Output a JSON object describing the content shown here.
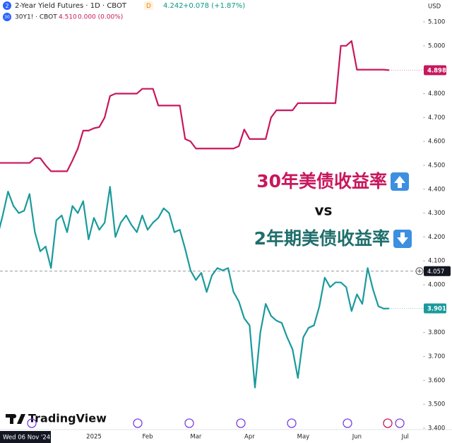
{
  "chart_data": {
    "type": "line",
    "currency": "USD",
    "header": [
      {
        "icon": "2",
        "name": "2-Year Yield Futures · 1D · CBOT",
        "badge": "D",
        "last": "4.242",
        "change": "+0.078 (+1.87%)"
      },
      {
        "icon": "30",
        "name": "30Y1! · CBOT",
        "last": "4.510",
        "change": "0.000 (0.00%)"
      }
    ],
    "annotations": [
      "30年美债收益率",
      "vs",
      "2年期美债收益率"
    ],
    "crosshair": {
      "value": 4.057,
      "date": "Wed 06 Nov '24"
    },
    "logo": "TradingView",
    "categories": [
      null,
      null,
      null,
      null,
      null,
      null,
      null,
      null,
      null,
      null,
      null,
      null,
      null,
      null,
      null,
      null,
      null,
      null,
      "2025",
      null,
      null,
      null,
      null,
      null,
      null,
      null,
      null,
      null,
      "Feb",
      null,
      null,
      null,
      null,
      null,
      null,
      null,
      null,
      "Mar",
      null,
      null,
      null,
      null,
      null,
      null,
      null,
      null,
      null,
      "Apr",
      null,
      null,
      null,
      null,
      null,
      null,
      null,
      null,
      null,
      "May",
      null,
      null,
      null,
      null,
      null,
      null,
      null,
      null,
      null,
      "Jun",
      null,
      null,
      null,
      null,
      null,
      null,
      null,
      null,
      "Jul"
    ],
    "series": [
      {
        "name": "30Y1! · CBOT",
        "color": "#c8175d",
        "values": [
          4.51,
          4.51,
          4.51,
          4.51,
          4.51,
          4.51,
          4.51,
          4.53,
          4.53,
          4.5,
          4.475,
          4.475,
          4.475,
          4.475,
          4.52,
          4.57,
          4.645,
          4.645,
          4.655,
          4.66,
          4.7,
          4.79,
          4.8,
          4.8,
          4.8,
          4.8,
          4.8,
          4.82,
          4.82,
          4.82,
          4.75,
          4.75,
          4.75,
          4.75,
          4.75,
          4.61,
          4.6,
          4.57,
          4.57,
          4.57,
          4.57,
          4.57,
          4.57,
          4.57,
          4.57,
          4.58,
          4.65,
          4.61,
          4.61,
          4.61,
          4.61,
          4.7,
          4.73,
          4.73,
          4.73,
          4.73,
          4.76,
          4.76,
          4.76,
          4.76,
          4.76,
          4.76,
          4.76,
          4.76,
          5.0,
          5.0,
          5.02,
          4.9,
          4.9,
          4.9,
          4.9,
          4.9,
          4.9,
          4.898,
          null,
          null,
          null
        ]
      },
      {
        "name": "2-Year Yield Futures · 1D · CBOT",
        "color": "#1a9a9c",
        "values": [
          4.2,
          4.29,
          4.39,
          4.33,
          4.3,
          4.31,
          4.38,
          4.22,
          4.14,
          4.16,
          4.07,
          4.27,
          4.29,
          4.22,
          4.33,
          4.3,
          4.35,
          4.19,
          4.28,
          4.23,
          4.26,
          4.41,
          4.2,
          4.26,
          4.29,
          4.25,
          4.22,
          4.29,
          4.23,
          4.26,
          4.28,
          4.32,
          4.3,
          4.22,
          4.23,
          4.15,
          4.06,
          4.02,
          4.05,
          3.97,
          4.04,
          4.07,
          4.06,
          4.07,
          3.97,
          3.93,
          3.86,
          3.83,
          3.57,
          3.8,
          3.92,
          3.87,
          3.85,
          3.84,
          3.78,
          3.73,
          3.61,
          3.78,
          3.82,
          3.83,
          3.91,
          4.03,
          3.99,
          4.01,
          4.01,
          3.99,
          3.89,
          3.96,
          3.92,
          4.07,
          3.98,
          3.91,
          3.9,
          3.901,
          null,
          null,
          null
        ]
      }
    ],
    "ylim": [
      3.4,
      5.1
    ],
    "yticks": [
      {
        "value": 3.4,
        "label": "3.400"
      },
      {
        "value": 3.5,
        "label": "3.500"
      },
      {
        "value": 3.6,
        "label": "3.600"
      },
      {
        "value": 3.7,
        "label": "3.700"
      },
      {
        "value": 3.8,
        "label": "3.800"
      },
      {
        "value": 3.9,
        "label": "3.900"
      },
      {
        "value": 4.0,
        "label": "4.000"
      },
      {
        "value": 4.1,
        "label": "4.100"
      },
      {
        "value": 4.2,
        "label": "4.200"
      },
      {
        "value": 4.3,
        "label": "4.300"
      },
      {
        "value": 4.4,
        "label": "4.400"
      },
      {
        "value": 4.5,
        "label": "4.500"
      },
      {
        "value": 4.6,
        "label": "4.600"
      },
      {
        "value": 4.7,
        "label": "4.700"
      },
      {
        "value": 4.8,
        "label": "4.800"
      },
      {
        "value": 4.9,
        "label": "4.900"
      },
      {
        "value": 5.0,
        "label": "5.000"
      },
      {
        "value": 5.1,
        "label": "5.100"
      }
    ],
    "grid": false
  }
}
